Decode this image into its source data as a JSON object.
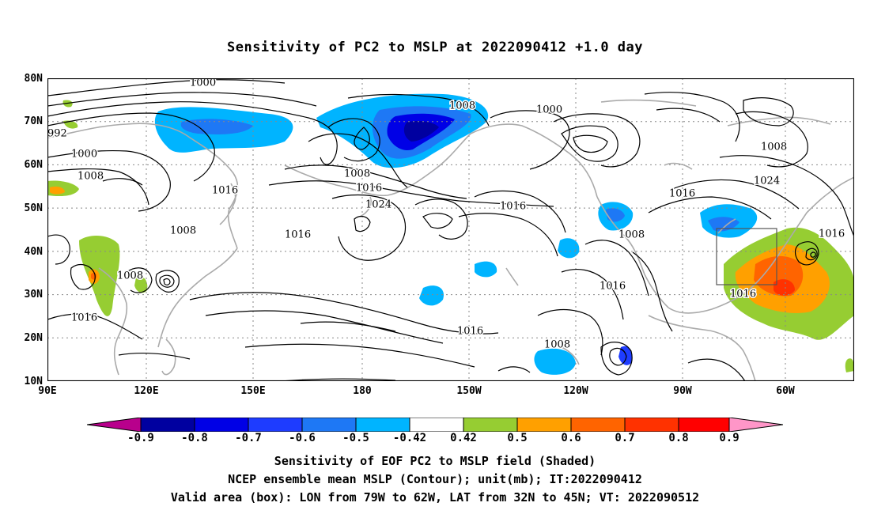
{
  "title": "Sensitivity of PC2 to MSLP at 2022090412 +1.0 day",
  "y_axis": [
    "80N",
    "70N",
    "60N",
    "50N",
    "40N",
    "30N",
    "20N",
    "10N"
  ],
  "x_axis": [
    "90E",
    "120E",
    "150E",
    "180",
    "150W",
    "120W",
    "90W",
    "60W"
  ],
  "contour_labels": [
    "1000",
    "992",
    "1000",
    "1008",
    "1008",
    "1016",
    "1008",
    "1008",
    "1016",
    "1008",
    "1016",
    "1024",
    "1016",
    "1016",
    "1016",
    "1000",
    "1008",
    "1016",
    "1024",
    "1008",
    "1016",
    "1016",
    "1016",
    "1008"
  ],
  "colorbar": {
    "labels": [
      "-0.9",
      "-0.8",
      "-0.7",
      "-0.6",
      "-0.5",
      "-0.42",
      "0.42",
      "0.5",
      "0.6",
      "0.7",
      "0.8",
      "0.9"
    ],
    "colors": [
      "#b8008c",
      "#0000a0",
      "#0000e6",
      "#1e3cff",
      "#1e78f5",
      "#00b4ff",
      "#ffffff",
      "#96cd32",
      "#ffa000",
      "#ff6400",
      "#ff3200",
      "#ff0000",
      "#ff96c8"
    ]
  },
  "footer": {
    "line1": "Sensitivity of EOF PC2 to MSLP field (Shaded)",
    "line2": "NCEP ensemble mean MSLP (Contour); unit(mb); IT:2022090412",
    "line3": "Valid area (box): LON from 79W to 62W, LAT from 32N to 45N; VT: 2022090512"
  }
}
